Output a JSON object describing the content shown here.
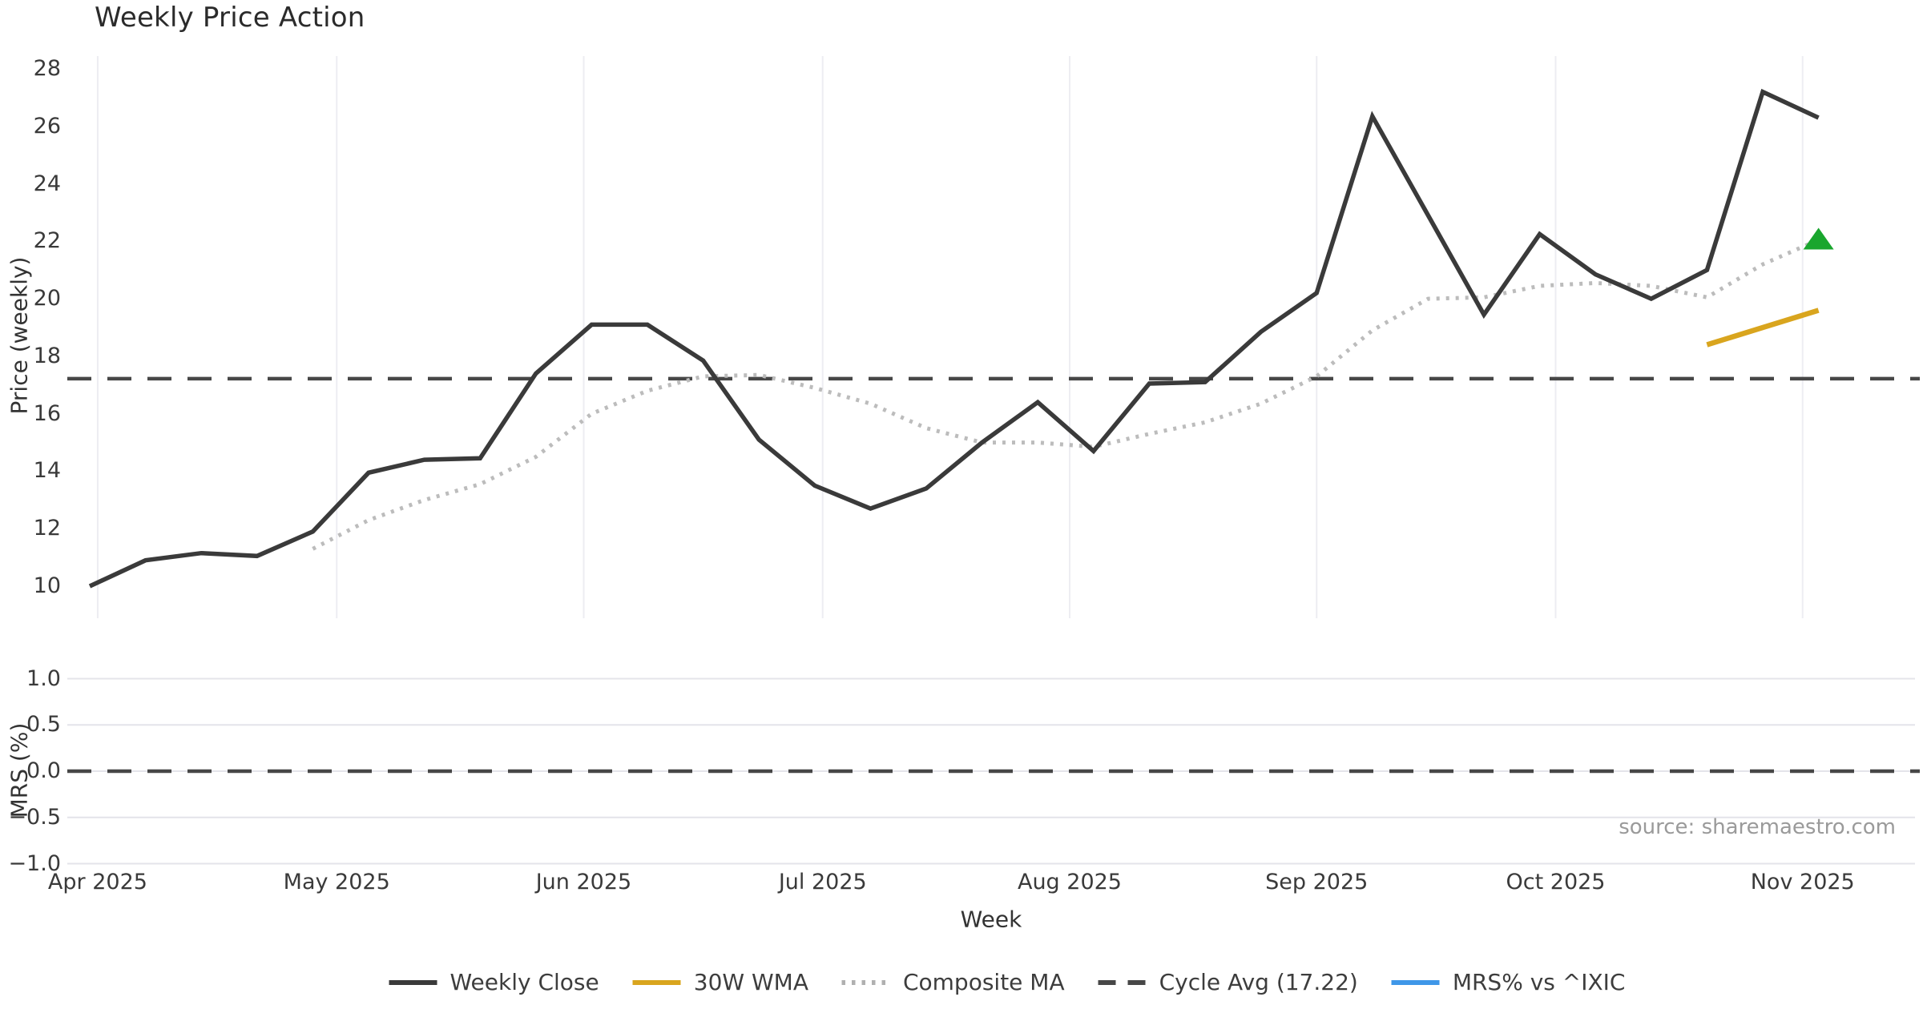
{
  "title": "Weekly Price Action",
  "source_note": "source: sharemaestro.com",
  "axes": {
    "price_axis_label": "Price (weekly)",
    "mrs_axis_label": "MRS (%)",
    "x_axis_label": "Week"
  },
  "chart_data": {
    "type": "line",
    "title": "Weekly Price Action",
    "xlabel": "Week",
    "x_tick_labels": [
      "Apr 2025",
      "May 2025",
      "Jun 2025",
      "Jul 2025",
      "Aug 2025",
      "Sep 2025",
      "Oct 2025",
      "Nov 2025"
    ],
    "x_tick_dates": [
      "2025-04-01",
      "2025-05-01",
      "2025-06-01",
      "2025-07-01",
      "2025-08-01",
      "2025-09-01",
      "2025-10-01",
      "2025-11-01"
    ],
    "grid": "vertical-month-lines-on-price-panel, horizontal-lines-on-mrs-panel",
    "legend_position": "bottom-center",
    "panels": [
      {
        "name": "price",
        "ylabel": "Price (weekly)",
        "ylim": [
          9.4,
          28.6
        ],
        "yticks": [
          28,
          26,
          24,
          22,
          20,
          18,
          16,
          14,
          12,
          10
        ],
        "series": [
          {
            "name": "Weekly Close",
            "style": "solid",
            "color": "#3a3a3a",
            "x": [
              "2025-03-31",
              "2025-04-07",
              "2025-04-14",
              "2025-04-21",
              "2025-04-28",
              "2025-05-05",
              "2025-05-12",
              "2025-05-19",
              "2025-05-26",
              "2025-06-02",
              "2025-06-09",
              "2025-06-16",
              "2025-06-23",
              "2025-06-30",
              "2025-07-07",
              "2025-07-14",
              "2025-07-21",
              "2025-07-28",
              "2025-08-04",
              "2025-08-11",
              "2025-08-18",
              "2025-08-25",
              "2025-09-01",
              "2025-09-08",
              "2025-09-15",
              "2025-09-22",
              "2025-09-29",
              "2025-10-06",
              "2025-10-13",
              "2025-10-20",
              "2025-10-27",
              "2025-11-03"
            ],
            "values": [
              10.0,
              10.9,
              11.15,
              11.05,
              11.9,
              13.95,
              14.4,
              14.45,
              17.4,
              19.1,
              19.1,
              17.85,
              15.1,
              13.5,
              12.7,
              13.4,
              15.0,
              16.4,
              14.7,
              17.05,
              17.1,
              18.85,
              20.2,
              26.35,
              22.9,
              19.45,
              22.25,
              20.85,
              20.0,
              21.0,
              27.2,
              26.3
            ]
          },
          {
            "name": "Composite MA",
            "style": "dotted",
            "color": "#bcbcbc",
            "x": [
              "2025-04-28",
              "2025-05-05",
              "2025-05-12",
              "2025-05-19",
              "2025-05-26",
              "2025-06-02",
              "2025-06-09",
              "2025-06-16",
              "2025-06-23",
              "2025-06-30",
              "2025-07-07",
              "2025-07-14",
              "2025-07-21",
              "2025-07-28",
              "2025-08-04",
              "2025-08-11",
              "2025-08-18",
              "2025-08-25",
              "2025-09-01",
              "2025-09-08",
              "2025-09-15",
              "2025-09-22",
              "2025-09-29",
              "2025-10-06",
              "2025-10-13",
              "2025-10-20",
              "2025-10-27",
              "2025-11-03"
            ],
            "values": [
              11.3,
              12.3,
              13.0,
              13.55,
              14.5,
              16.0,
              16.8,
              17.3,
              17.35,
              16.9,
              16.35,
              15.5,
              15.0,
              15.0,
              14.85,
              15.3,
              15.7,
              16.35,
              17.3,
              18.9,
              20.0,
              20.05,
              20.45,
              20.55,
              20.45,
              20.05,
              21.2,
              22.05
            ]
          },
          {
            "name": "30W WMA",
            "style": "solid",
            "color": "#d9a51e",
            "x": [
              "2025-10-20",
              "2025-10-27",
              "2025-11-03"
            ],
            "values": [
              18.4,
              19.0,
              19.6
            ]
          },
          {
            "name": "Cycle Avg (17.22)",
            "style": "dashed",
            "color": "#474747",
            "constant_value": 17.22
          }
        ],
        "markers": [
          {
            "name": "composite-end-up-triangle",
            "shape": "triangle-up",
            "color": "#1aa62e",
            "x": "2025-11-03",
            "value": 22.05
          }
        ]
      },
      {
        "name": "mrs",
        "ylabel": "MRS (%)",
        "ylim": [
          -1.0,
          1.0
        ],
        "yticks": [
          "1.0",
          "0.5",
          "0.0",
          "−0.5",
          "−1.0"
        ],
        "ytick_values": [
          1.0,
          0.5,
          0.0,
          -0.5,
          -1.0
        ],
        "series": [
          {
            "name": "MRS% vs ^IXIC",
            "style": "solid",
            "color": "#2e93e6",
            "visible_in_plot": false,
            "values": []
          },
          {
            "name": "zero-line",
            "style": "dashed",
            "color": "#474747",
            "constant_value": 0.0
          }
        ]
      }
    ],
    "legend": [
      {
        "label": "Weekly Close",
        "color": "#3a3a3a",
        "style": "solid"
      },
      {
        "label": "30W WMA",
        "color": "#d9a51e",
        "style": "solid"
      },
      {
        "label": "Composite MA",
        "color": "#b0b0b0",
        "style": "dotted"
      },
      {
        "label": "Cycle Avg (17.22)",
        "color": "#474747",
        "style": "dashed"
      },
      {
        "label": "MRS% vs ^IXIC",
        "color": "#3f97e8",
        "style": "solid"
      }
    ]
  }
}
